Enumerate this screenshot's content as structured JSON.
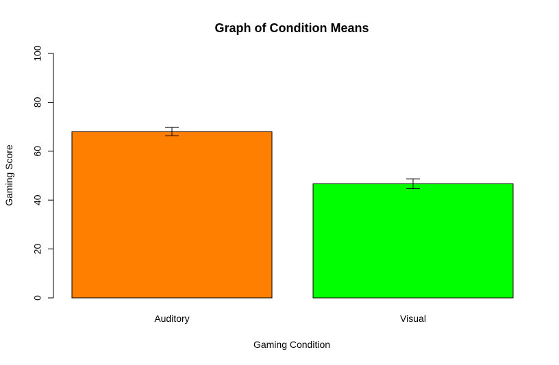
{
  "chart_data": {
    "type": "bar",
    "title": "Graph of Condition Means",
    "xlabel": "Gaming Condition",
    "ylabel": "Gaming Score",
    "categories": [
      "Auditory",
      "Visual"
    ],
    "values": [
      68,
      46.7
    ],
    "error_low": [
      66.3,
      44.7
    ],
    "error_high": [
      69.7,
      48.7
    ],
    "ylim": [
      0,
      100
    ],
    "yticks": [
      "0",
      "20",
      "40",
      "60",
      "80",
      "100"
    ],
    "ytick_values": [
      0,
      20,
      40,
      60,
      80,
      100
    ],
    "colors": [
      "#ff7f00",
      "#00ff00"
    ],
    "grid": false,
    "legend": "none"
  }
}
